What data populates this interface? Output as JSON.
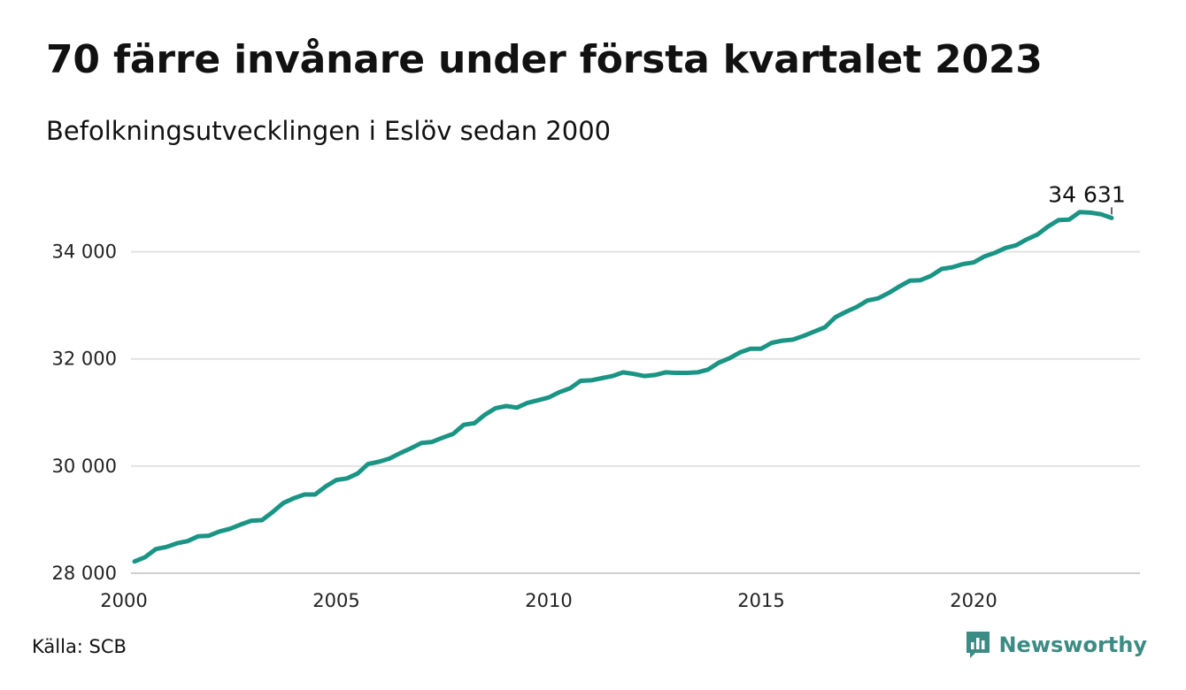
{
  "title": "70 färre invånare under första kvartalet 2023",
  "subtitle": "Befolkningsutvecklingen i Eslöv sedan 2000",
  "source": "Källa: SCB",
  "brand": {
    "name": "Newsworthy",
    "icon": "newsworthy-logo-icon",
    "color": "#3b8c84"
  },
  "colors": {
    "line": "#1a9484",
    "grid": "#e2e2e2"
  },
  "chart_data": {
    "type": "line",
    "title": "70 färre invånare under första kvartalet 2023",
    "subtitle": "Befolkningsutvecklingen i Eslöv sedan 2000",
    "xlabel": "",
    "ylabel": "",
    "xlim": [
      2000,
      2024
    ],
    "ylim": [
      28000,
      35000
    ],
    "x_ticks": [
      2000,
      2005,
      2010,
      2015,
      2020
    ],
    "x_tick_labels": [
      "2000",
      "2005",
      "2010",
      "2015",
      "2020"
    ],
    "y_ticks": [
      28000,
      30000,
      32000,
      34000
    ],
    "y_tick_labels": [
      "28 000",
      "30 000",
      "32 000",
      "34 000"
    ],
    "grid": "horizontal",
    "legend": "none",
    "end_label": "34 631",
    "series": [
      {
        "x": [
          2000.25,
          2000.5,
          2000.75,
          2001.0,
          2001.25,
          2001.5,
          2001.75,
          2002.0,
          2002.25,
          2002.5,
          2002.75,
          2003.0,
          2003.25,
          2003.5,
          2003.75,
          2004.0,
          2004.25,
          2004.5,
          2004.75,
          2005.0,
          2005.25,
          2005.5,
          2005.75,
          2006.0,
          2006.25,
          2006.5,
          2006.75,
          2007.0,
          2007.25,
          2007.5,
          2007.75,
          2008.0,
          2008.25,
          2008.5,
          2008.75,
          2009.0,
          2009.25,
          2009.5,
          2009.75,
          2010.0,
          2010.25,
          2010.5,
          2010.75,
          2011.0,
          2011.25,
          2011.5,
          2011.75,
          2012.0,
          2012.25,
          2012.5,
          2012.75,
          2013.0,
          2013.25,
          2013.5,
          2013.75,
          2014.0,
          2014.25,
          2014.5,
          2014.75,
          2015.0,
          2015.25,
          2015.5,
          2015.75,
          2016.0,
          2016.25,
          2016.5,
          2016.75,
          2017.0,
          2017.25,
          2017.5,
          2017.75,
          2018.0,
          2018.25,
          2018.5,
          2018.75,
          2019.0,
          2019.25,
          2019.5,
          2019.75,
          2020.0,
          2020.25,
          2020.5,
          2020.75,
          2021.0,
          2021.25,
          2021.5,
          2021.75,
          2022.0,
          2022.25,
          2022.5,
          2022.75,
          2023.0,
          2023.25
        ],
        "values": [
          28220,
          28300,
          28450,
          28490,
          28560,
          28600,
          28690,
          28700,
          28780,
          28830,
          28910,
          28980,
          28990,
          29140,
          29310,
          29400,
          29470,
          29470,
          29620,
          29740,
          29770,
          29860,
          30040,
          30080,
          30140,
          30240,
          30330,
          30430,
          30450,
          30530,
          30600,
          30770,
          30800,
          30960,
          31080,
          31120,
          31090,
          31180,
          31230,
          31280,
          31380,
          31450,
          31590,
          31600,
          31640,
          31680,
          31750,
          31720,
          31680,
          31700,
          31750,
          31740,
          31740,
          31750,
          31800,
          31930,
          32010,
          32120,
          32190,
          32190,
          32300,
          32340,
          32360,
          32430,
          32510,
          32590,
          32780,
          32880,
          32970,
          33090,
          33130,
          33230,
          33350,
          33460,
          33470,
          33550,
          33680,
          33710,
          33770,
          33800,
          33910,
          33980,
          34070,
          34120,
          34230,
          34320,
          34470,
          34590,
          34600,
          34740,
          34730,
          34700,
          34631
        ]
      }
    ]
  }
}
